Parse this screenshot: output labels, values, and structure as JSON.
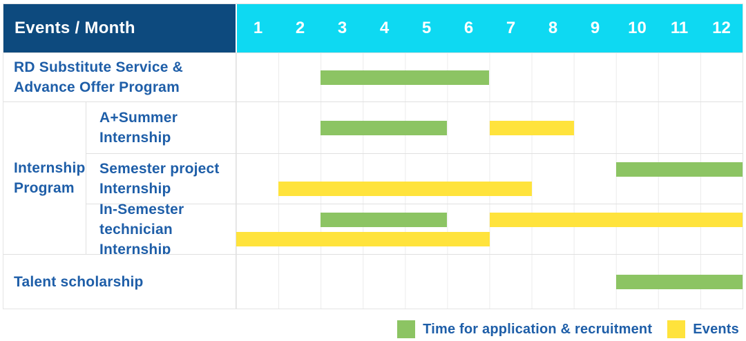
{
  "header": {
    "label": "Events / Month",
    "months": [
      "1",
      "2",
      "3",
      "4",
      "5",
      "6",
      "7",
      "8",
      "9",
      "10",
      "11",
      "12"
    ]
  },
  "colors": {
    "header_bg": "#0D4A7E",
    "months_bg": "#0ED9F2",
    "header_text": "#FFFFFF",
    "month_text": "#FFFFFF",
    "label_text": "#1E5EA8",
    "application": "#8CC463",
    "events": "#FFE33C",
    "grid_line": "#EBEBEB",
    "row_line": "#E0E0E0"
  },
  "group": {
    "label": "Internship Program",
    "label_lines": [
      "Internship",
      "Program"
    ]
  },
  "rows": [
    {
      "label": "RD Substitute Service & Advance Offer Program",
      "label_lines": [
        "RD Substitute Service &",
        "Advance Offer Program"
      ],
      "lines": 1,
      "spans": [
        {
          "kind": "application",
          "months": [
            3,
            6
          ],
          "line": 1
        }
      ]
    },
    {
      "label": "A+Summer Internship",
      "label_lines": [
        "A+Summer",
        "Internship"
      ],
      "lines": 1,
      "spans": [
        {
          "kind": "application",
          "months": [
            3,
            5
          ],
          "line": 1
        },
        {
          "kind": "events",
          "months": [
            7,
            8
          ],
          "line": 1
        }
      ]
    },
    {
      "label": "Semester project Internship",
      "label_lines": [
        "Semester project",
        "Internship"
      ],
      "lines": 2,
      "spans": [
        {
          "kind": "application",
          "months": [
            10,
            12
          ],
          "line": 1
        },
        {
          "kind": "events",
          "months": [
            2,
            7
          ],
          "line": 2
        }
      ]
    },
    {
      "label": "In-Semester technician Internship",
      "label_lines": [
        "In-Semester",
        "technician Internship"
      ],
      "lines": 2,
      "spans": [
        {
          "kind": "application",
          "months": [
            3,
            5
          ],
          "line": 1
        },
        {
          "kind": "events",
          "months": [
            7,
            12
          ],
          "line": 1
        },
        {
          "kind": "events",
          "months": [
            1,
            6
          ],
          "line": 2
        }
      ]
    },
    {
      "label": "Talent scholarship",
      "label_lines": [
        "Talent scholarship"
      ],
      "lines": 1,
      "spans": [
        {
          "kind": "application",
          "months": [
            10,
            12
          ],
          "line": 1
        }
      ]
    }
  ],
  "legend": [
    {
      "key": "application",
      "label": "Time for application & recruitment"
    },
    {
      "key": "events",
      "label": "Events"
    }
  ],
  "chart_data": {
    "type": "bar",
    "subtype": "gantt",
    "title": "Events / Month",
    "x_axis": {
      "label": "Month",
      "ticks": [
        "1",
        "2",
        "3",
        "4",
        "5",
        "6",
        "7",
        "8",
        "9",
        "10",
        "11",
        "12"
      ],
      "range": [
        1,
        12
      ]
    },
    "legend_entries": [
      "Time for application & recruitment",
      "Events"
    ],
    "legend_position": "bottom-right",
    "grid": true,
    "rows": [
      {
        "event": "RD Substitute Service & Advance Offer Program",
        "group": null,
        "application_recruitment_months": [
          [
            3,
            6
          ]
        ],
        "events_months": []
      },
      {
        "event": "A+Summer Internship",
        "group": "Internship Program",
        "application_recruitment_months": [
          [
            3,
            5
          ]
        ],
        "events_months": [
          [
            7,
            8
          ]
        ]
      },
      {
        "event": "Semester project Internship",
        "group": "Internship Program",
        "application_recruitment_months": [
          [
            10,
            12
          ]
        ],
        "events_months": [
          [
            2,
            7
          ]
        ]
      },
      {
        "event": "In-Semester technician Internship",
        "group": "Internship Program",
        "application_recruitment_months": [
          [
            3,
            5
          ]
        ],
        "events_months": [
          [
            7,
            12
          ],
          [
            1,
            6
          ]
        ]
      },
      {
        "event": "Talent scholarship",
        "group": null,
        "application_recruitment_months": [
          [
            10,
            12
          ]
        ],
        "events_months": []
      }
    ]
  }
}
